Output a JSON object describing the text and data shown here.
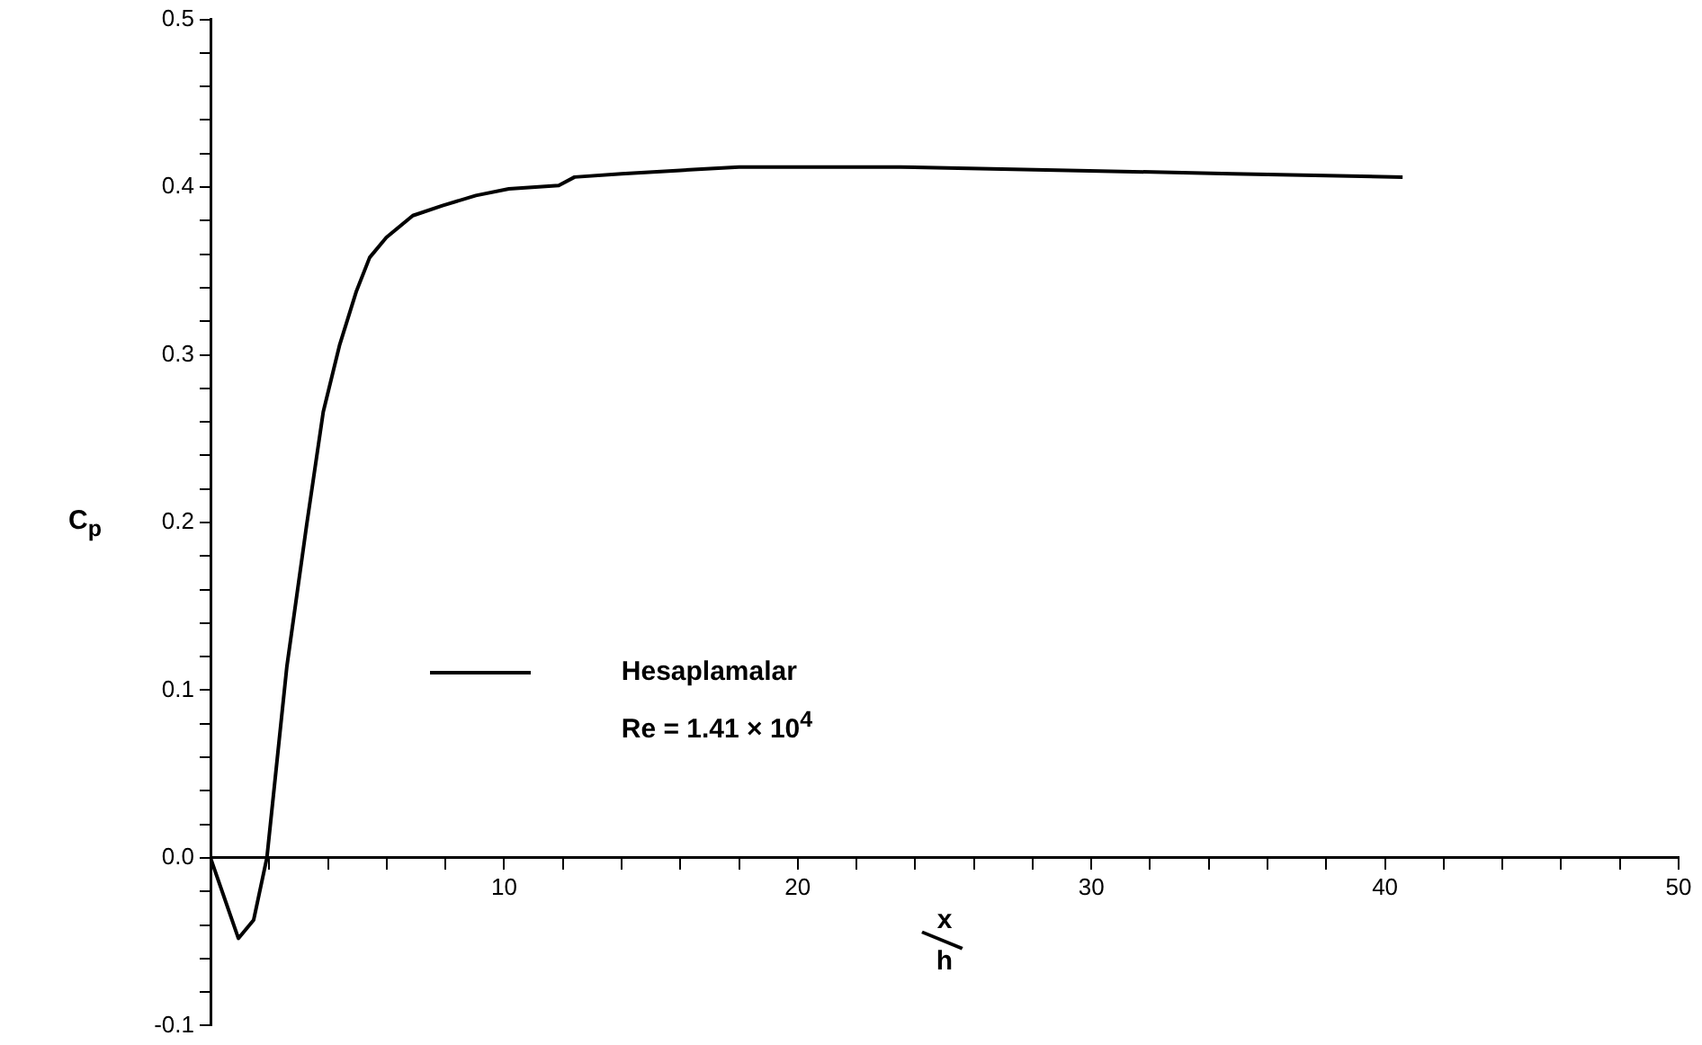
{
  "chart_data": {
    "type": "line",
    "xlabel": "x/h",
    "ylabel": "C$_{p}$",
    "series": [
      {
        "name": "Hesaplamalar",
        "color": "#000000",
        "x": [
          0,
          0.95,
          1.47,
          1.92,
          2.6,
          3.27,
          3.84,
          4.4,
          4.97,
          5.42,
          5.99,
          6.89,
          7.9,
          9.04,
          10.16,
          11.86,
          12.4,
          14.0,
          16.0,
          18.0,
          23.5,
          29.2,
          34.8,
          37.6,
          40.6
        ],
        "values": [
          0,
          -0.048,
          -0.037,
          0,
          0.114,
          0.198,
          0.266,
          0.306,
          0.338,
          0.358,
          0.37,
          0.383,
          0.389,
          0.395,
          0.399,
          0.401,
          0.406,
          0.408,
          0.41,
          0.412,
          0.412,
          0.41,
          0.408,
          0.407,
          0.406
        ]
      }
    ],
    "xlim": [
      0,
      50
    ],
    "xticks": [
      {
        "value": 0,
        "label": null
      },
      {
        "value": 2,
        "label": null
      },
      {
        "value": 4,
        "label": null
      },
      {
        "value": 6,
        "label": null
      },
      {
        "value": 8,
        "label": null
      },
      10,
      {
        "value": 12,
        "label": null
      },
      {
        "value": 14,
        "label": null
      },
      {
        "value": 16,
        "label": null
      },
      {
        "value": 18,
        "label": null
      },
      20,
      {
        "value": 22,
        "label": null
      },
      {
        "value": 24,
        "label": null
      },
      {
        "value": 26,
        "label": null
      },
      {
        "value": 28,
        "label": null
      },
      30,
      {
        "value": 32,
        "label": null
      },
      {
        "value": 34,
        "label": null
      },
      {
        "value": 36,
        "label": null
      },
      {
        "value": 38,
        "label": null
      },
      40,
      {
        "value": 42,
        "label": null
      },
      {
        "value": 44,
        "label": null
      },
      {
        "value": 46,
        "label": null
      },
      {
        "value": 48,
        "label": null
      },
      50
    ],
    "ylim": [
      -0.1,
      0.5
    ],
    "yticks": [
      -0.1,
      {
        "value": -0.08,
        "label": null
      },
      {
        "value": -0.06,
        "label": null
      },
      {
        "value": -0.04,
        "label": null
      },
      {
        "value": -0.02,
        "label": null
      },
      {
        "value": 0,
        "label": "0.0"
      },
      {
        "value": 0.02,
        "label": null
      },
      {
        "value": 0.04,
        "label": null
      },
      {
        "value": 0.06,
        "label": null
      },
      {
        "value": 0.08,
        "label": null
      },
      0.1,
      {
        "value": 0.12,
        "label": null
      },
      {
        "value": 0.14,
        "label": null
      },
      {
        "value": 0.16,
        "label": null
      },
      {
        "value": 0.18,
        "label": null
      },
      0.2,
      {
        "value": 0.22,
        "label": null
      },
      {
        "value": 0.24,
        "label": null
      },
      {
        "value": 0.26,
        "label": null
      },
      {
        "value": 0.28,
        "label": null
      },
      0.3,
      {
        "value": 0.32,
        "label": null
      },
      {
        "value": 0.34,
        "label": null
      },
      {
        "value": 0.36,
        "label": null
      },
      {
        "value": 0.38,
        "label": null
      },
      0.4,
      {
        "value": 0.42,
        "label": null
      },
      {
        "value": 0.44,
        "label": null
      },
      {
        "value": 0.46,
        "label": null
      },
      {
        "value": 0.48,
        "label": null
      },
      0.5
    ],
    "grid": false,
    "legend": "left",
    "marker": "none",
    "line_style": "solid",
    "annotations": [
      "Re = 1.41 × 10$^{4}$"
    ]
  }
}
